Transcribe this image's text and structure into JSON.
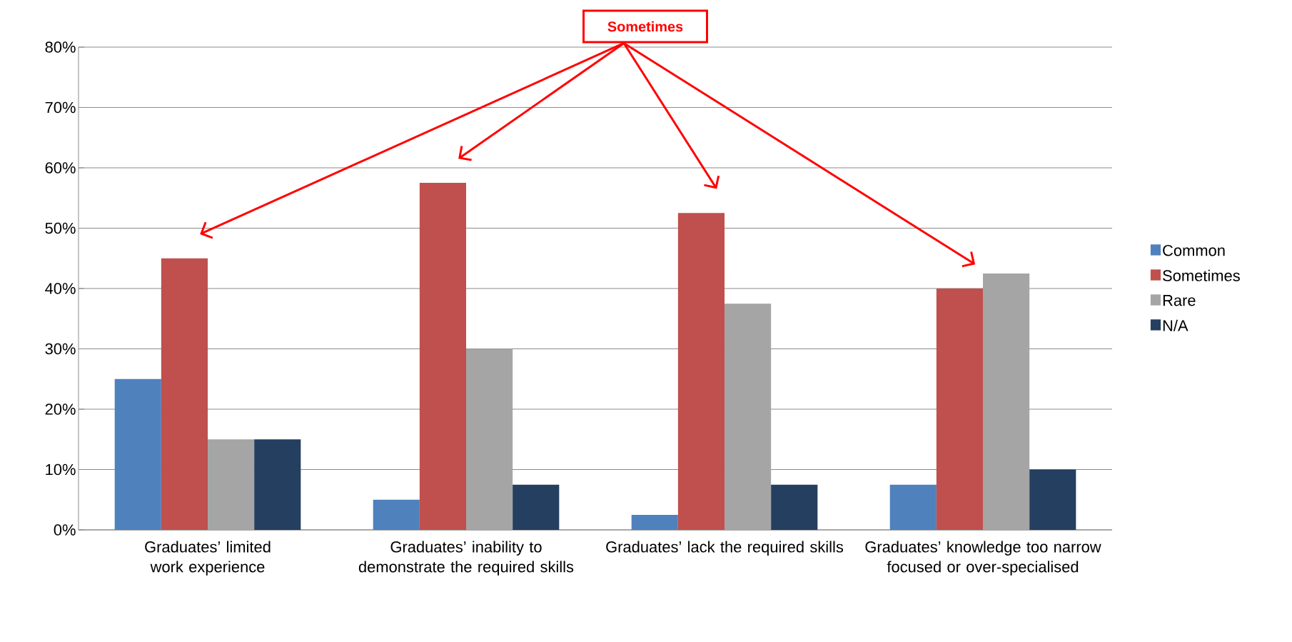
{
  "chart_data": {
    "type": "bar",
    "categories": [
      "Graduates’ limited work experience",
      "Graduates’ inability to demonstrate the required skills",
      "Graduates’ lack the required skills",
      "Graduates’ knowledge too narrow focused or over-specialised"
    ],
    "series": [
      {
        "name": "Common",
        "color": "#4f81bd",
        "values": [
          25,
          5,
          2.5,
          7.5
        ]
      },
      {
        "name": "Sometimes",
        "color": "#c0504d",
        "values": [
          45,
          57.5,
          52.5,
          40
        ]
      },
      {
        "name": "Rare",
        "color": "#a5a5a5",
        "values": [
          15,
          30,
          37.5,
          42.5
        ]
      },
      {
        "name": "N/A",
        "color": "#243f60",
        "values": [
          15,
          7.5,
          7.5,
          10
        ]
      }
    ],
    "ylim": [
      0,
      80
    ],
    "yticks": [
      {
        "value": 0,
        "label": "0%"
      },
      {
        "value": 10,
        "label": "10%"
      },
      {
        "value": 20,
        "label": "20%"
      },
      {
        "value": 30,
        "label": "30%"
      },
      {
        "value": 40,
        "label": "40%"
      },
      {
        "value": 50,
        "label": "50%"
      },
      {
        "value": 60,
        "label": "60%"
      },
      {
        "value": 70,
        "label": "70%"
      },
      {
        "value": 80,
        "label": "80%"
      }
    ],
    "grid": "y",
    "legend": "right",
    "annotations": [
      "Sometimes"
    ]
  }
}
